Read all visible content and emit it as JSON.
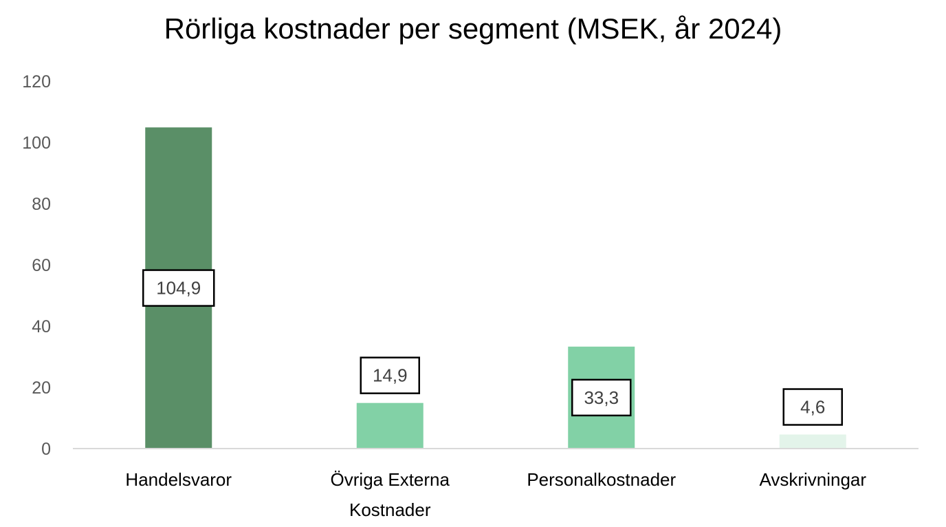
{
  "chart_data": {
    "type": "bar",
    "title": "Rörliga kostnader per segment (MSEK, år 2024)",
    "xlabel": "",
    "ylabel": "",
    "ylim": [
      0,
      120
    ],
    "yticks": [
      0,
      20,
      40,
      60,
      80,
      100,
      120
    ],
    "ytick_labels": [
      "0",
      "20",
      "40",
      "60",
      "80",
      "100",
      "120"
    ],
    "grid": false,
    "legend": "none",
    "categories": [
      [
        "Handelsvaror"
      ],
      [
        "Övriga Externa",
        "Kostnader"
      ],
      [
        "Personalkostnader"
      ],
      [
        "Avskrivningar"
      ]
    ],
    "values": [
      104.9,
      14.9,
      33.3,
      4.6
    ],
    "data_labels": [
      "104,9",
      "14,9",
      "33,3",
      "4,6"
    ],
    "data_label_positions": [
      "center",
      "above",
      "center",
      "above"
    ],
    "colors": [
      "#5a8f67",
      "#82d1a6",
      "#82d1a6",
      "#e3f4ea"
    ]
  }
}
